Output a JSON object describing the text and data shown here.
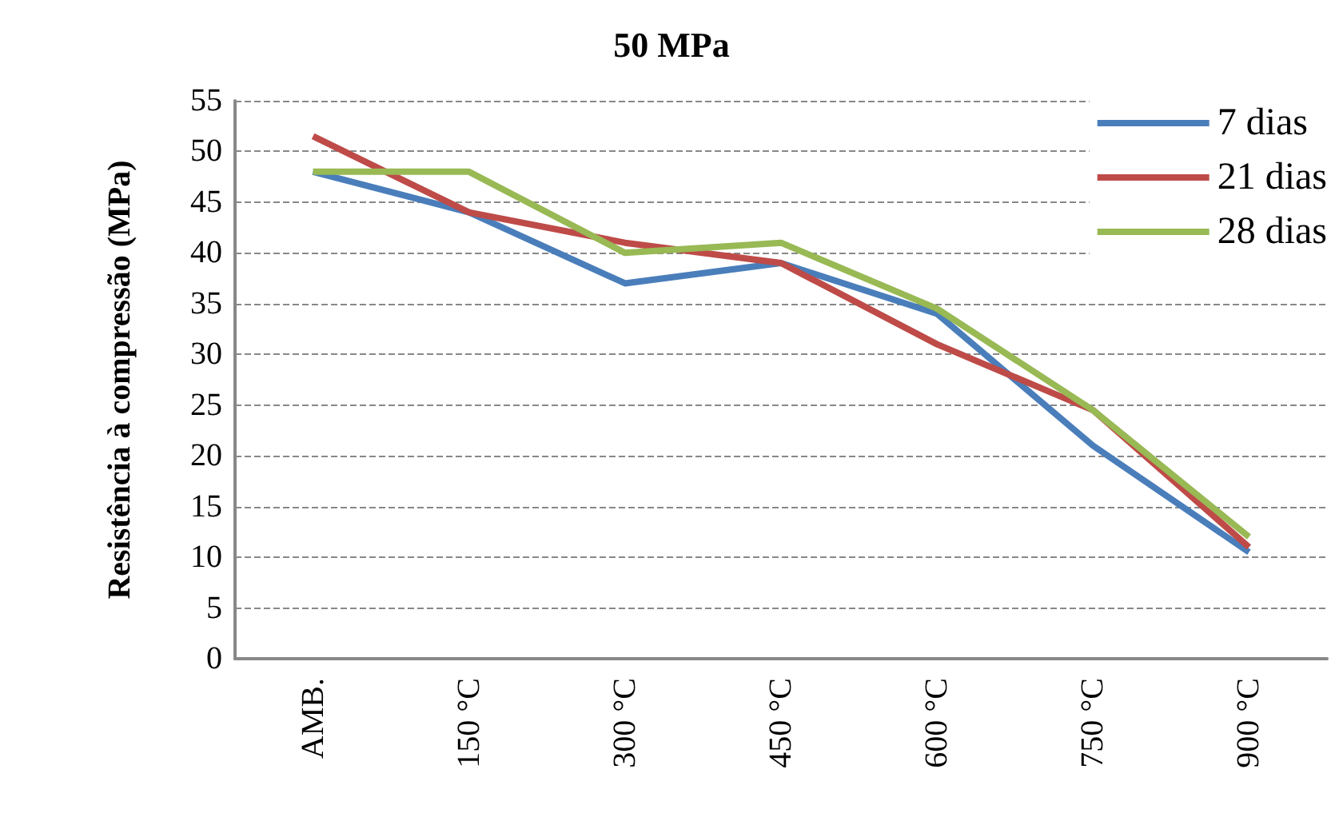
{
  "chart_data": {
    "type": "line",
    "title": "50 MPa",
    "ylabel": "Resistência à compressão (MPa)",
    "categories": [
      "AMB.",
      "150 °C",
      "300 °C",
      "450 °C",
      "600 °C",
      "750 °C",
      "900 °C"
    ],
    "series": [
      {
        "name": "7 dias",
        "color": "#4a7ebb",
        "values": [
          48,
          44,
          37,
          39,
          34,
          21,
          10.5
        ]
      },
      {
        "name": "21 dias",
        "color": "#be4b48",
        "values": [
          51.5,
          44,
          41,
          39,
          31,
          24.5,
          11
        ]
      },
      {
        "name": "28 dias",
        "color": "#98b954",
        "values": [
          48,
          48,
          40,
          41,
          34.5,
          24.5,
          12
        ]
      }
    ],
    "ylim": [
      0,
      55
    ],
    "yticks": [
      0,
      5,
      10,
      15,
      20,
      25,
      30,
      35,
      40,
      45,
      50,
      55
    ],
    "grid": "y",
    "legend": "top right",
    "marker": "none",
    "line_style": "solid"
  }
}
